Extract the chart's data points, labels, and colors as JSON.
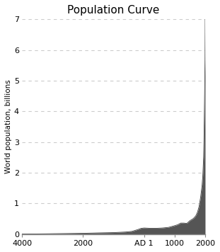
{
  "title": "Population Curve",
  "ylabel": "World population, billions",
  "xlim": [
    -4000,
    2000
  ],
  "ylim": [
    0,
    7
  ],
  "yticks": [
    0,
    1,
    2,
    3,
    4,
    5,
    6,
    7
  ],
  "xticks": [
    -4000,
    -2000,
    0,
    1000,
    2000
  ],
  "xticklabels": [
    "4000",
    "2000",
    "AD 1",
    "1000",
    "2000"
  ],
  "fill_color": "#555555",
  "line_color": "#444444",
  "grid_color": "#cccccc",
  "background_color": "#ffffff",
  "title_fontsize": 11,
  "label_fontsize": 7.5,
  "tick_fontsize": 8,
  "years": [
    -4000,
    -3500,
    -3000,
    -2500,
    -2000,
    -1500,
    -1000,
    -800,
    -600,
    -400,
    -200,
    -100,
    1,
    200,
    400,
    600,
    800,
    1000,
    1100,
    1200,
    1300,
    1400,
    1500,
    1600,
    1650,
    1700,
    1750,
    1800,
    1850,
    1900,
    1910,
    1920,
    1930,
    1940,
    1950,
    1955,
    1960,
    1965,
    1970,
    1975,
    1980,
    1985,
    1990,
    1995,
    1999,
    2000
  ],
  "population": [
    0.005,
    0.007,
    0.014,
    0.02,
    0.027,
    0.04,
    0.05,
    0.06,
    0.07,
    0.09,
    0.15,
    0.188,
    0.2,
    0.19,
    0.19,
    0.2,
    0.22,
    0.275,
    0.306,
    0.36,
    0.36,
    0.35,
    0.438,
    0.5,
    0.545,
    0.61,
    0.72,
    0.9,
    1.2,
    1.6,
    1.75,
    1.86,
    2.07,
    2.3,
    2.52,
    2.77,
    3.02,
    3.34,
    3.7,
    4.06,
    4.43,
    4.83,
    5.26,
    5.67,
    6.6,
    7.0
  ]
}
